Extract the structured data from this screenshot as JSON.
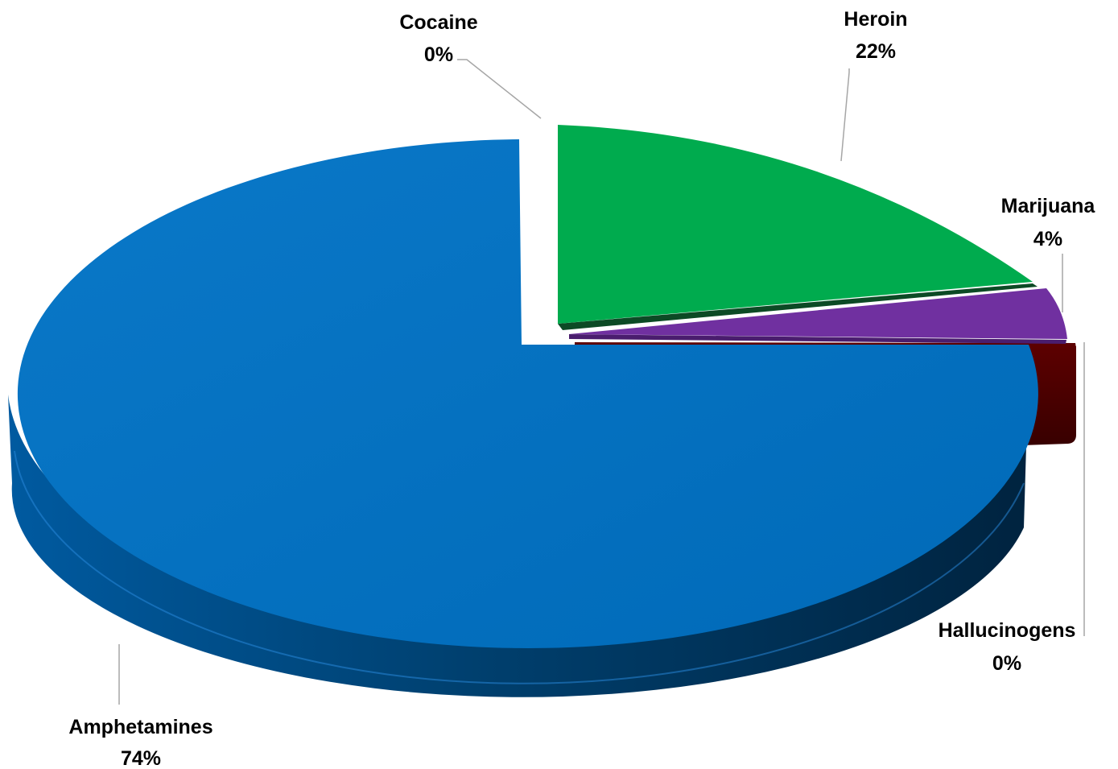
{
  "chart_data": {
    "type": "pie",
    "style": "3d-exploded",
    "title": "",
    "slices": [
      {
        "label": "Cocaine",
        "value": 0,
        "value_label": "0%",
        "color": "#7f6000"
      },
      {
        "label": "Heroin",
        "value": 22,
        "value_label": "22%",
        "color": "#00ab4e"
      },
      {
        "label": "Marijuana",
        "value": 4,
        "value_label": "4%",
        "color": "#7030a0"
      },
      {
        "label": "Hallucinogens",
        "value": 0,
        "value_label": "0%",
        "color": "#5c0000"
      },
      {
        "label": "Amphetamines",
        "value": 74,
        "value_label": "74%",
        "color": "#0070c0"
      }
    ],
    "legend": "none",
    "data_labels": "outside-with-leader-lines"
  }
}
